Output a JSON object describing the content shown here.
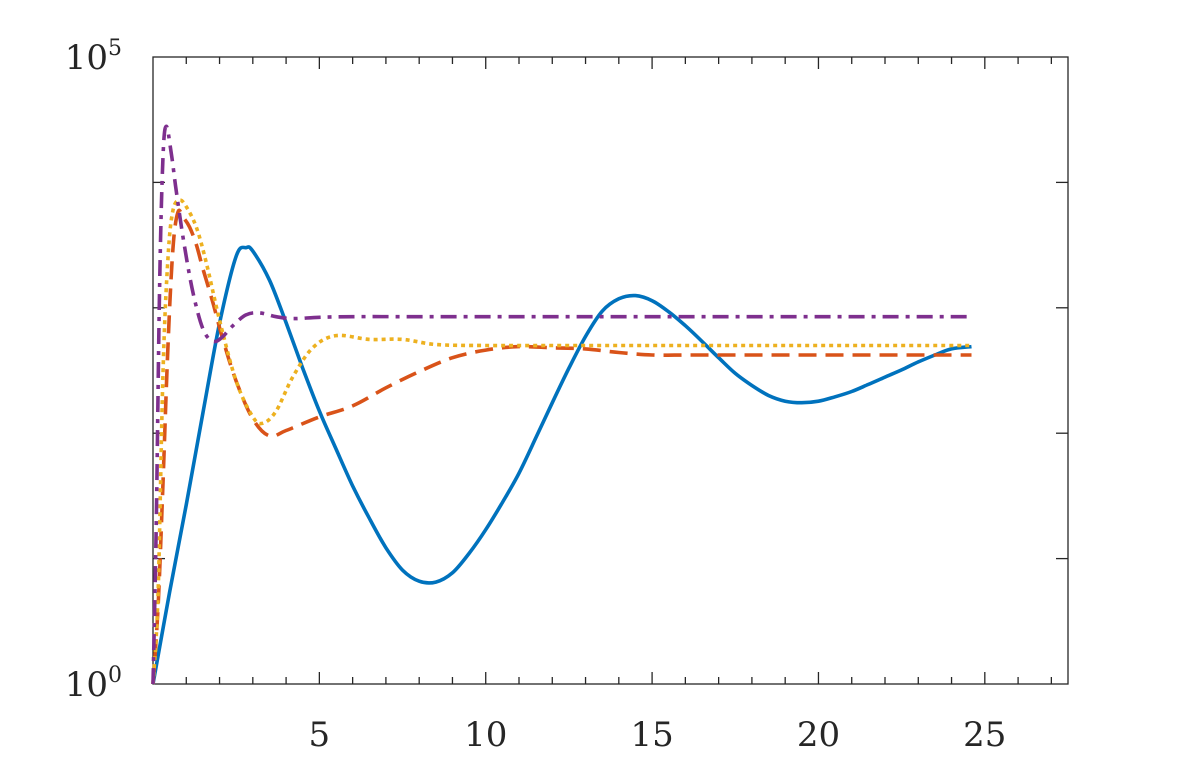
{
  "chart_data": {
    "type": "line",
    "title": "",
    "xlabel": "",
    "ylabel": "",
    "xlim": [
      0,
      27.5
    ],
    "ylim": [
      1,
      100000
    ],
    "yscale": "log",
    "grid": false,
    "legend": "none",
    "x_ticks": [
      5,
      10,
      15,
      20,
      25
    ],
    "x_tick_labels": [
      "5",
      "10",
      "15",
      "20",
      "25"
    ],
    "y_ticks": [
      1,
      100000
    ],
    "y_tick_labels": [
      {
        "base": "10",
        "exp": "0"
      },
      {
        "base": "10",
        "exp": "5"
      }
    ],
    "series": [
      {
        "color": "#0072BD",
        "style": "solid",
        "x": [
          0,
          0.5,
          1,
          1.5,
          2,
          2.5,
          2.8,
          3,
          3.5,
          4,
          4.5,
          5,
          5.5,
          6,
          6.5,
          7,
          7.5,
          8,
          8.5,
          9,
          9.5,
          10,
          10.5,
          11,
          11.5,
          12,
          12.5,
          13,
          13.5,
          14,
          14.5,
          15,
          15.5,
          16,
          16.5,
          17,
          17.5,
          18,
          18.5,
          19,
          19.5,
          20,
          20.5,
          21,
          21.5,
          22,
          22.5,
          23,
          23.5,
          24,
          24.6
        ],
        "y": [
          1,
          5.4,
          27,
          145,
          750,
          2580,
          3020,
          2830,
          1660,
          760,
          330,
          150,
          75,
          38,
          21,
          12.2,
          8.1,
          6.6,
          6.5,
          7.7,
          11,
          17,
          28,
          48,
          91,
          175,
          330,
          590,
          940,
          1180,
          1250,
          1140,
          930,
          720,
          540,
          400,
          300,
          240,
          200,
          180,
          175,
          180,
          195,
          215,
          245,
          280,
          320,
          370,
          420,
          470,
          490
        ]
      },
      {
        "color": "#D95319",
        "style": "dashed",
        "x": [
          0,
          0.15,
          0.3,
          0.45,
          0.6,
          0.75,
          0.9,
          1.1,
          1.3,
          1.5,
          1.8,
          2.1,
          2.5,
          3,
          3.5,
          4,
          5,
          6,
          7,
          8,
          9,
          10,
          11,
          12,
          13,
          14,
          15,
          16,
          17,
          18,
          19,
          20,
          21,
          22,
          23,
          24,
          24.6
        ],
        "y": [
          1,
          4,
          40,
          500,
          3000,
          5800,
          5300,
          4400,
          3200,
          2050,
          1100,
          560,
          260,
          130,
          95,
          105,
          135,
          165,
          230,
          310,
          400,
          460,
          490,
          480,
          470,
          440,
          420,
          420,
          420,
          420,
          420,
          420,
          420,
          420,
          420,
          420,
          420
        ]
      },
      {
        "color": "#EDB120",
        "style": "dotted",
        "x": [
          0,
          0.15,
          0.3,
          0.45,
          0.6,
          0.8,
          1,
          1.3,
          1.6,
          2,
          2.5,
          3,
          3.3,
          3.7,
          4.2,
          4.8,
          5.5,
          6.5,
          7.5,
          8.5,
          10,
          12,
          14,
          16,
          18,
          20,
          22,
          24,
          24.6
        ],
        "y": [
          1,
          5,
          300,
          2500,
          6000,
          7200,
          6400,
          4400,
          2300,
          800,
          260,
          135,
          120,
          150,
          280,
          480,
          600,
          560,
          560,
          510,
          500,
          500,
          500,
          500,
          500,
          500,
          500,
          500,
          500
        ]
      },
      {
        "color": "#7E2F8E",
        "style": "dashdot",
        "x": [
          0,
          0.1,
          0.2,
          0.3,
          0.4,
          0.55,
          0.7,
          0.9,
          1.1,
          1.3,
          1.5,
          1.7,
          1.9,
          2.1,
          2.4,
          2.8,
          3.2,
          3.7,
          4.2,
          5,
          6,
          8,
          10,
          12,
          14,
          16,
          18,
          20,
          22,
          24,
          24.6
        ],
        "y": [
          1,
          20,
          1600,
          16000,
          28000,
          17000,
          8500,
          3700,
          1800,
          1020,
          680,
          560,
          540,
          590,
          720,
          880,
          910,
          850,
          820,
          840,
          850,
          850,
          850,
          850,
          850,
          850,
          850,
          850,
          850,
          850,
          850
        ]
      }
    ]
  }
}
